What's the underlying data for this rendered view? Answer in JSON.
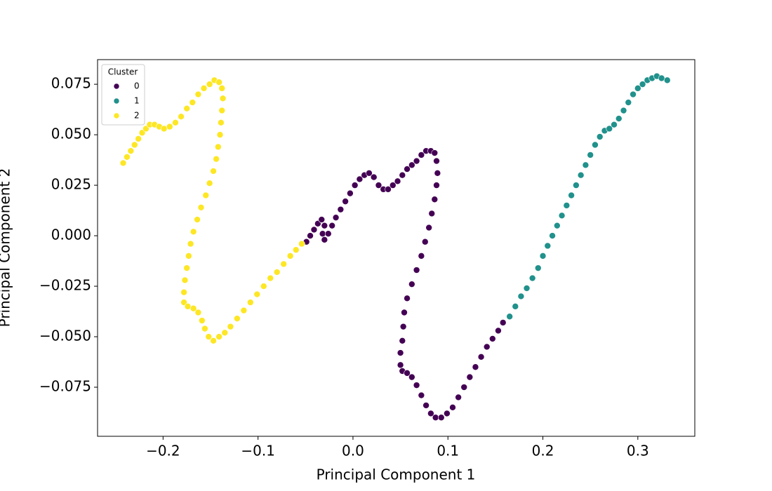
{
  "chart_data": {
    "type": "scatter",
    "xlabel": "Principal Component 1",
    "ylabel": "Principal Component 2",
    "legend_title": "Cluster",
    "legend": "upper left",
    "xlim": [
      -0.269,
      0.36
    ],
    "ylim": [
      -0.0993,
      0.0872
    ],
    "xticks": [
      {
        "value": -0.2,
        "label": "−0.2"
      },
      {
        "value": -0.1,
        "label": "−0.1"
      },
      {
        "value": 0,
        "label": "0.0"
      },
      0.1,
      0.2,
      0.3
    ],
    "yticks": [
      {
        "value": -0.075,
        "label": "−0.075"
      },
      {
        "value": -0.05,
        "label": "−0.050"
      },
      {
        "value": -0.025,
        "label": "−0.025"
      },
      {
        "value": 0,
        "label": "0.000"
      },
      0.025,
      {
        "value": 0.05,
        "label": "0.050"
      },
      0.075
    ],
    "series": [
      {
        "name": "0",
        "color": "#440154",
        "x": [
          -0.049,
          -0.045,
          -0.041,
          -0.037,
          -0.033,
          -0.03,
          -0.032,
          -0.03,
          -0.026,
          -0.022,
          -0.018,
          -0.013,
          -0.008,
          -0.003,
          0.002,
          0.007,
          0.012,
          0.017,
          0.022,
          0.027,
          0.032,
          0.037,
          0.042,
          0.047,
          0.052,
          0.057,
          0.062,
          0.067,
          0.072,
          0.077,
          0.082,
          0.086,
          0.088,
          0.089,
          0.088,
          0.086,
          0.083,
          0.08,
          0.076,
          0.072,
          0.067,
          0.062,
          0.057,
          0.054,
          0.053,
          0.052,
          0.05,
          0.05,
          0.052,
          0.057,
          0.062,
          0.067,
          0.072,
          0.077,
          0.082,
          0.087,
          0.093,
          0.099,
          0.105,
          0.111,
          0.117,
          0.123,
          0.129,
          0.135,
          0.141,
          0.147,
          0.153,
          0.158
        ],
        "y": [
          -0.003,
          0.0,
          0.003,
          0.006,
          0.008,
          0.005,
          0.001,
          -0.002,
          0.001,
          0.005,
          0.009,
          0.013,
          0.017,
          0.021,
          0.025,
          0.028,
          0.03,
          0.031,
          0.029,
          0.025,
          0.023,
          0.023,
          0.025,
          0.027,
          0.03,
          0.033,
          0.035,
          0.037,
          0.04,
          0.042,
          0.042,
          0.041,
          0.037,
          0.031,
          0.025,
          0.018,
          0.011,
          0.004,
          -0.003,
          -0.01,
          -0.017,
          -0.024,
          -0.031,
          -0.038,
          -0.045,
          -0.052,
          -0.058,
          -0.064,
          -0.067,
          -0.068,
          -0.07,
          -0.074,
          -0.079,
          -0.084,
          -0.088,
          -0.09,
          -0.09,
          -0.088,
          -0.085,
          -0.08,
          -0.075,
          -0.07,
          -0.065,
          -0.06,
          -0.055,
          -0.051,
          -0.047,
          -0.043
        ]
      },
      {
        "name": "1",
        "color": "#21918c",
        "x": [
          0.165,
          0.171,
          0.177,
          0.183,
          0.189,
          0.195,
          0.2,
          0.205,
          0.21,
          0.215,
          0.22,
          0.225,
          0.23,
          0.235,
          0.24,
          0.245,
          0.25,
          0.255,
          0.26,
          0.265,
          0.27,
          0.275,
          0.28,
          0.285,
          0.29,
          0.295,
          0.3,
          0.305,
          0.31,
          0.315,
          0.32,
          0.325,
          0.331
        ],
        "y": [
          -0.04,
          -0.035,
          -0.03,
          -0.026,
          -0.021,
          -0.016,
          -0.01,
          -0.005,
          0.0,
          0.005,
          0.01,
          0.015,
          0.02,
          0.025,
          0.03,
          0.035,
          0.04,
          0.045,
          0.049,
          0.052,
          0.053,
          0.055,
          0.058,
          0.062,
          0.066,
          0.07,
          0.073,
          0.075,
          0.077,
          0.078,
          0.079,
          0.078,
          0.077
        ]
      },
      {
        "name": "2",
        "color": "#fde725",
        "x": [
          -0.242,
          -0.238,
          -0.234,
          -0.23,
          -0.226,
          -0.222,
          -0.218,
          -0.214,
          -0.209,
          -0.204,
          -0.199,
          -0.193,
          -0.187,
          -0.181,
          -0.175,
          -0.169,
          -0.163,
          -0.157,
          -0.151,
          -0.146,
          -0.141,
          -0.138,
          -0.137,
          -0.138,
          -0.139,
          -0.14,
          -0.142,
          -0.144,
          -0.147,
          -0.151,
          -0.155,
          -0.16,
          -0.164,
          -0.168,
          -0.171,
          -0.173,
          -0.175,
          -0.177,
          -0.178,
          -0.178,
          -0.174,
          -0.168,
          -0.163,
          -0.159,
          -0.156,
          -0.152,
          -0.147,
          -0.141,
          -0.135,
          -0.129,
          -0.122,
          -0.115,
          -0.108,
          -0.101,
          -0.094,
          -0.087,
          -0.08,
          -0.073,
          -0.066,
          -0.06,
          -0.054
        ],
        "y": [
          0.036,
          0.039,
          0.042,
          0.045,
          0.048,
          0.051,
          0.053,
          0.055,
          0.055,
          0.054,
          0.053,
          0.054,
          0.056,
          0.059,
          0.063,
          0.066,
          0.07,
          0.073,
          0.075,
          0.077,
          0.076,
          0.073,
          0.068,
          0.062,
          0.056,
          0.05,
          0.044,
          0.038,
          0.032,
          0.026,
          0.02,
          0.014,
          0.008,
          0.002,
          -0.004,
          -0.01,
          -0.016,
          -0.022,
          -0.028,
          -0.033,
          -0.035,
          -0.036,
          -0.038,
          -0.042,
          -0.046,
          -0.05,
          -0.052,
          -0.05,
          -0.048,
          -0.045,
          -0.041,
          -0.037,
          -0.033,
          -0.029,
          -0.025,
          -0.021,
          -0.018,
          -0.014,
          -0.01,
          -0.007,
          -0.004
        ]
      }
    ]
  }
}
